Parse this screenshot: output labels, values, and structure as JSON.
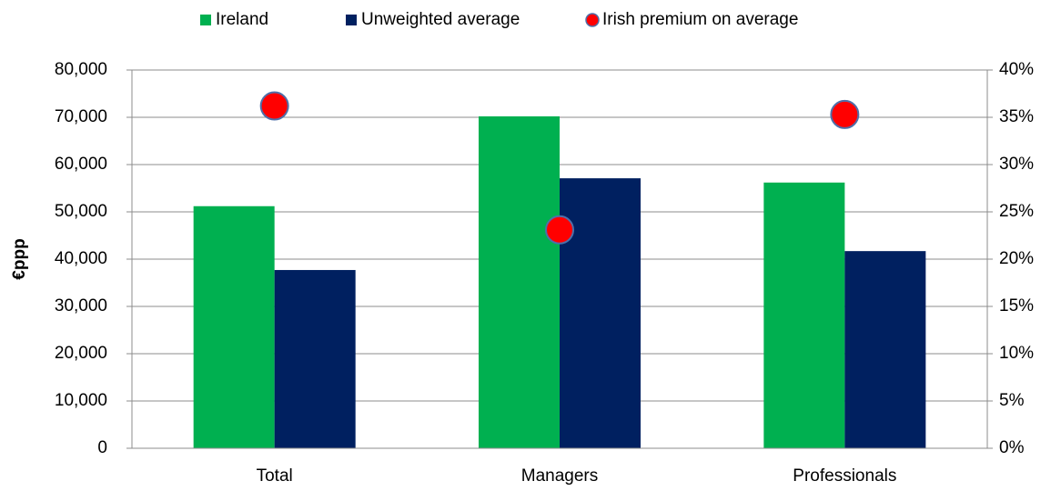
{
  "chart_data": {
    "type": "bar",
    "y_label": "€ppp",
    "categories": [
      "Total",
      "Managers",
      "Professionals"
    ],
    "series": [
      {
        "name": "Ireland",
        "color": "#00b050",
        "values": [
          51200,
          70200,
          56200
        ]
      },
      {
        "name": "Unweighted average",
        "color": "#002060",
        "values": [
          37700,
          57100,
          41700
        ]
      },
      {
        "name": "Irish premium on average",
        "color": "#ff0000",
        "type": "scatter",
        "axis": "y2",
        "values": [
          36.2,
          23.1,
          35.3
        ]
      }
    ],
    "ylim": [
      0,
      80000
    ],
    "yticks": [
      0,
      {
        "value": 10000,
        "label": "10,000"
      },
      {
        "value": 20000,
        "label": "20,000"
      },
      {
        "value": 30000,
        "label": "30,000"
      },
      {
        "value": 40000,
        "label": "40,000"
      },
      {
        "value": 50000,
        "label": "50,000"
      },
      {
        "value": 60000,
        "label": "60,000"
      },
      {
        "value": 70000,
        "label": "70,000"
      },
      {
        "value": 80000,
        "label": "80,000"
      }
    ],
    "y2lim": [
      0,
      40
    ],
    "y2ticks": [
      {
        "value": 0,
        "label": "0%"
      },
      {
        "value": 5,
        "label": "5%"
      },
      {
        "value": 10,
        "label": "10%"
      },
      {
        "value": 15,
        "label": "15%"
      },
      {
        "value": 20,
        "label": "20%"
      },
      {
        "value": 25,
        "label": "25%"
      },
      {
        "value": 30,
        "label": "30%"
      },
      {
        "value": 35,
        "label": "35%"
      },
      {
        "value": 40,
        "label": "40%"
      }
    ],
    "grid": true,
    "legend": "top"
  }
}
